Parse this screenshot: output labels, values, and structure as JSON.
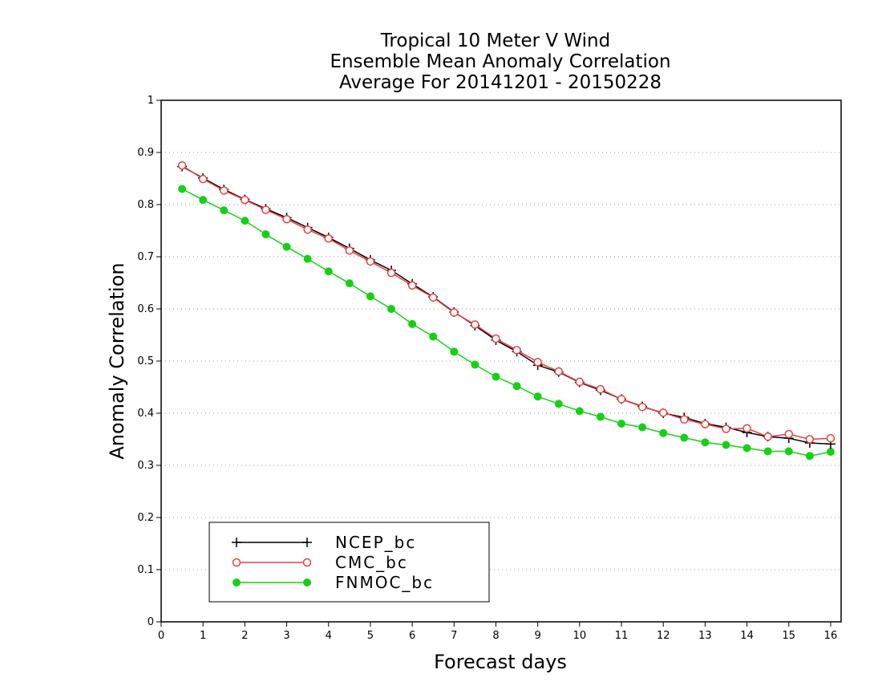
{
  "chart_data": {
    "type": "line",
    "title": [
      "Tropical 10 Meter V Wind",
      "Ensemble Mean Anomaly Correlation",
      "Average For 20141201 - 20150228"
    ],
    "xlabel": "Forecast days",
    "ylabel": "Anomaly Correlation",
    "xlim": [
      0,
      16.25
    ],
    "ylim": [
      0,
      1
    ],
    "xticks": [
      0,
      1,
      2,
      3,
      4,
      5,
      6,
      7,
      8,
      9,
      10,
      11,
      12,
      13,
      14,
      15,
      16
    ],
    "yticks": [
      0,
      0.1,
      0.2,
      0.3,
      0.4,
      0.5,
      0.6,
      0.7,
      0.8,
      0.9,
      1
    ],
    "ytick_labels": [
      "0",
      "0.1",
      "0.2",
      "0.3",
      "0.4",
      "0.5",
      "0.6",
      "0.7",
      "0.8",
      "0.9",
      "1"
    ],
    "grid": true,
    "legend_position": "bottom-left",
    "x": [
      0.5,
      1,
      1.5,
      2,
      2.5,
      3,
      3.5,
      4,
      4.5,
      5,
      5.5,
      6,
      6.5,
      7,
      7.5,
      8,
      8.5,
      9,
      9.5,
      10,
      10.5,
      11,
      11.5,
      12,
      12.5,
      13,
      13.5,
      14,
      14.5,
      15,
      15.5,
      16
    ],
    "series": [
      {
        "name": "NCEP_bc",
        "color": "#000000",
        "marker": "plus",
        "values": [
          0.873,
          0.851,
          0.829,
          0.81,
          0.792,
          0.775,
          0.756,
          0.737,
          0.716,
          0.694,
          0.674,
          0.648,
          0.623,
          0.594,
          0.568,
          0.54,
          0.518,
          0.492,
          0.479,
          0.459,
          0.444,
          0.427,
          0.413,
          0.4,
          0.392,
          0.38,
          0.373,
          0.363,
          0.355,
          0.352,
          0.343,
          0.341
        ]
      },
      {
        "name": "CMC_bc",
        "color": "#e84040",
        "marker": "open-circle",
        "values": [
          0.875,
          0.849,
          0.827,
          0.809,
          0.79,
          0.772,
          0.752,
          0.735,
          0.712,
          0.691,
          0.669,
          0.645,
          0.622,
          0.593,
          0.57,
          0.543,
          0.521,
          0.498,
          0.48,
          0.46,
          0.446,
          0.427,
          0.412,
          0.401,
          0.388,
          0.379,
          0.37,
          0.371,
          0.355,
          0.36,
          0.35,
          0.352
        ]
      },
      {
        "name": "FNMOC_bc",
        "color": "#16d016",
        "marker": "filled-circle",
        "values": [
          0.83,
          0.809,
          0.789,
          0.769,
          0.743,
          0.719,
          0.696,
          0.672,
          0.649,
          0.624,
          0.6,
          0.571,
          0.547,
          0.518,
          0.493,
          0.47,
          0.452,
          0.432,
          0.418,
          0.404,
          0.393,
          0.38,
          0.373,
          0.362,
          0.353,
          0.344,
          0.339,
          0.333,
          0.327,
          0.327,
          0.318,
          0.326
        ]
      }
    ]
  }
}
